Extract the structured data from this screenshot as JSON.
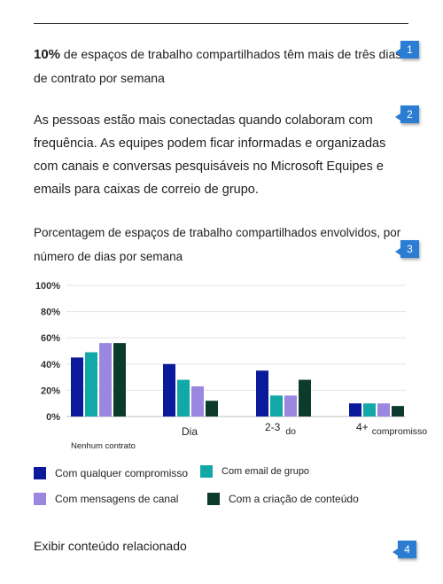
{
  "stat": {
    "percent": "10%",
    "text": "de espaços de trabalho compartilhados têm mais de três dias de contrato por semana"
  },
  "description": "As pessoas estão mais conectadas quando colaboram com frequência. As equipes podem ficar informadas e organizadas com canais e conversas pesquisáveis no Microsoft Equipes e emails para caixas de correio de grupo.",
  "chart_title": "Porcentagem de espaços de trabalho compartilhados envolvidos, por número de dias por semana",
  "callouts": [
    "1",
    "2",
    "3",
    "4"
  ],
  "related_link": "Exibir conteúdo relacionado",
  "chart_data": {
    "type": "bar",
    "categories": [
      "Nenhum contrato",
      "Dia",
      "2-3 do",
      "4+ compromisso"
    ],
    "series": [
      {
        "name": "Com qualquer compromisso",
        "color": "#0a1a9a",
        "values": [
          45,
          40,
          35,
          10
        ]
      },
      {
        "name": "Com email de grupo",
        "color": "#13a8a8",
        "values": [
          49,
          28,
          16,
          10
        ]
      },
      {
        "name": "Com mensagens de canal",
        "color": "#9b87e0",
        "values": [
          56,
          23,
          16,
          10
        ]
      },
      {
        "name": "Com a criação de conteúdo",
        "color": "#0c3b2e",
        "values": [
          56,
          12,
          28,
          8
        ]
      }
    ],
    "yticks": [
      "0%",
      "20%",
      "40%",
      "60%",
      "80%",
      "100%"
    ],
    "ylim": [
      0,
      100
    ],
    "grid": true,
    "legend": "bottom"
  }
}
